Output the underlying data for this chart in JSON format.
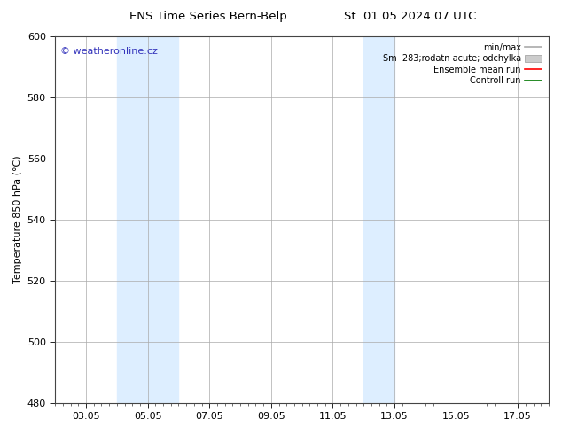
{
  "title_left": "ENS Time Series Bern-Belp",
  "title_right": "St. 01.05.2024 07 UTC",
  "ylabel": "Temperature 850 hPa (°C)",
  "ylim": [
    480,
    600
  ],
  "yticks": [
    480,
    500,
    520,
    540,
    560,
    580,
    600
  ],
  "xlim": [
    0,
    16
  ],
  "xtick_labels": [
    "03.05",
    "05.05",
    "07.05",
    "09.05",
    "11.05",
    "13.05",
    "15.05",
    "17.05"
  ],
  "xtick_positions": [
    1,
    3,
    5,
    7,
    9,
    11,
    13,
    15
  ],
  "background_color": "#ffffff",
  "plot_bg_color": "#ffffff",
  "watermark": "© weatheronline.cz",
  "watermark_color": "#3333bb",
  "shaded_bands": [
    {
      "x_start": 2,
      "x_end": 4,
      "color": "#ddeeff"
    },
    {
      "x_start": 10,
      "x_end": 11,
      "color": "#ddeeff"
    }
  ],
  "legend_entries": [
    {
      "label": "min/max",
      "color": "#aaaaaa",
      "lw": 1.2,
      "type": "line"
    },
    {
      "label": "Sm  283;rodatn acute; odchylka",
      "color": "#cccccc",
      "lw": 6,
      "type": "patch"
    },
    {
      "label": "Ensemble mean run",
      "color": "#ff0000",
      "lw": 1.2,
      "type": "line"
    },
    {
      "label": "Controll run",
      "color": "#007700",
      "lw": 1.2,
      "type": "line"
    }
  ],
  "grid_color": "#aaaaaa",
  "grid_lw": 0.5,
  "border_color": "#444444",
  "minor_tick_count": 4
}
